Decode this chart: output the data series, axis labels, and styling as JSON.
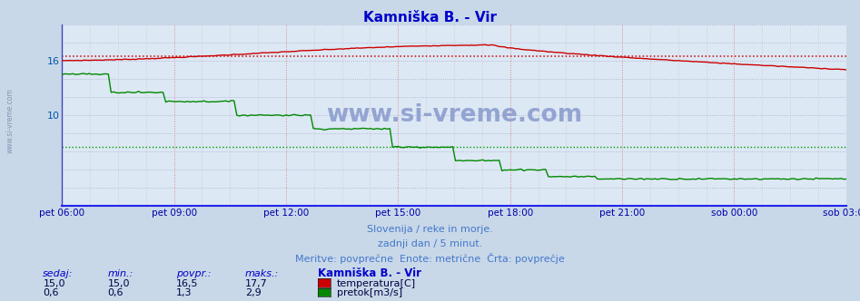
{
  "title": "Kamniška B. - Vir",
  "title_color": "#0000cc",
  "fig_bg_color": "#c8d8e8",
  "plot_bg_color": "#dce8f4",
  "border_left_color": "#4444bb",
  "border_bottom_color": "#2222ee",
  "temp_color": "#cc0000",
  "flow_color": "#008800",
  "avg_temp_color": "#cc0000",
  "avg_flow_color": "#009900",
  "grid_v_major_color": "#dd8888",
  "grid_v_minor_color": "#ddbbbb",
  "grid_h_color": "#aaaacc",
  "x_tick_color": "#0000aa",
  "y_tick_color": "#0055aa",
  "subtitle_color": "#4477cc",
  "stat_label_color": "#0000cc",
  "stat_val_color": "#000044",
  "watermark": "www.si-vreme.com",
  "watermark_color": "#8899cc",
  "x_ticks": [
    "pet 06:00",
    "pet 09:00",
    "pet 12:00",
    "pet 15:00",
    "pet 18:00",
    "pet 21:00",
    "sob 00:00",
    "sob 03:00"
  ],
  "y_labels": [
    "",
    "",
    "",
    "",
    "",
    "10",
    "",
    "",
    "16",
    "",
    ""
  ],
  "y_ticks": [
    0,
    2,
    4,
    6,
    8,
    10,
    12,
    14,
    16,
    18,
    20
  ],
  "ylim": [
    0,
    20
  ],
  "temp_ylim_min": 0,
  "temp_ylim_max": 20,
  "flow_ylim_min": 0,
  "flow_ylim_max": 4,
  "temp_avg": 16.5,
  "flow_avg": 1.3,
  "subtitle1": "Slovenija / reke in morje.",
  "subtitle2": "zadnji dan / 5 minut.",
  "subtitle3": "Meritve: povprečne  Enote: metrične  Črta: povprečje",
  "legend_title": "Kamniška B. - Vir",
  "legend_temp": "temperatura[C]",
  "legend_flow": "pretok[m3/s]",
  "headers": [
    "sedaj:",
    "min.:",
    "povpr.:",
    "maks.:"
  ],
  "temp_vals": [
    "15,0",
    "15,0",
    "16,5",
    "17,7"
  ],
  "flow_vals": [
    "0,6",
    "0,6",
    "1,3",
    "2,9"
  ]
}
